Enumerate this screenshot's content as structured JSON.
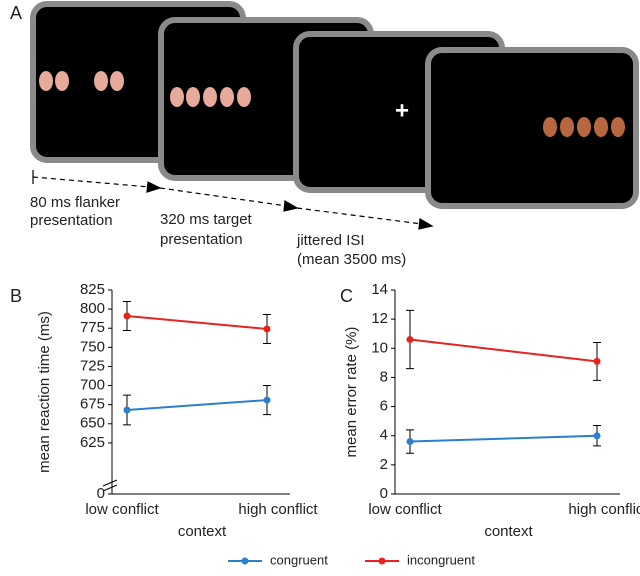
{
  "panel_labels": [
    "A",
    "B",
    "C"
  ],
  "timeline": {
    "fixation": "+",
    "steps": [
      [
        "80 ms flanker",
        "presentation"
      ],
      [
        "320 ms target",
        "presentation"
      ],
      [
        "jittered ISI",
        "(mean 3500 ms)"
      ]
    ]
  },
  "chart_data": [
    {
      "type": "line",
      "ylabel": "mean reaction time (ms)",
      "xlabel": "context",
      "categories": [
        "low conflict",
        "high conflict"
      ],
      "series": [
        {
          "name": "congruent",
          "color": "#2b7fcc",
          "values": [
            668,
            681
          ],
          "errors": [
            19.5,
            19
          ]
        },
        {
          "name": "incongruent",
          "color": "#e6231e",
          "values": [
            791,
            774
          ],
          "errors": [
            19,
            19
          ]
        }
      ],
      "ylim": [
        0,
        825
      ],
      "axis_break": [
        0,
        600
      ],
      "yticks": [
        0,
        625,
        650,
        675,
        700,
        725,
        750,
        775,
        800,
        825
      ]
    },
    {
      "type": "line",
      "ylabel": "mean error rate (%)",
      "xlabel": "context",
      "categories": [
        "low conflict",
        "high conflict"
      ],
      "series": [
        {
          "name": "congruent",
          "color": "#2b7fcc",
          "values": [
            3.6,
            4.0
          ],
          "errors": [
            0.8,
            0.7
          ]
        },
        {
          "name": "incongruent",
          "color": "#e6231e",
          "values": [
            10.6,
            9.1
          ],
          "errors": [
            2.0,
            1.3
          ]
        }
      ],
      "ylim": [
        0,
        14
      ],
      "yticks": [
        0,
        2,
        4,
        6,
        8,
        10,
        12,
        14
      ]
    }
  ]
}
